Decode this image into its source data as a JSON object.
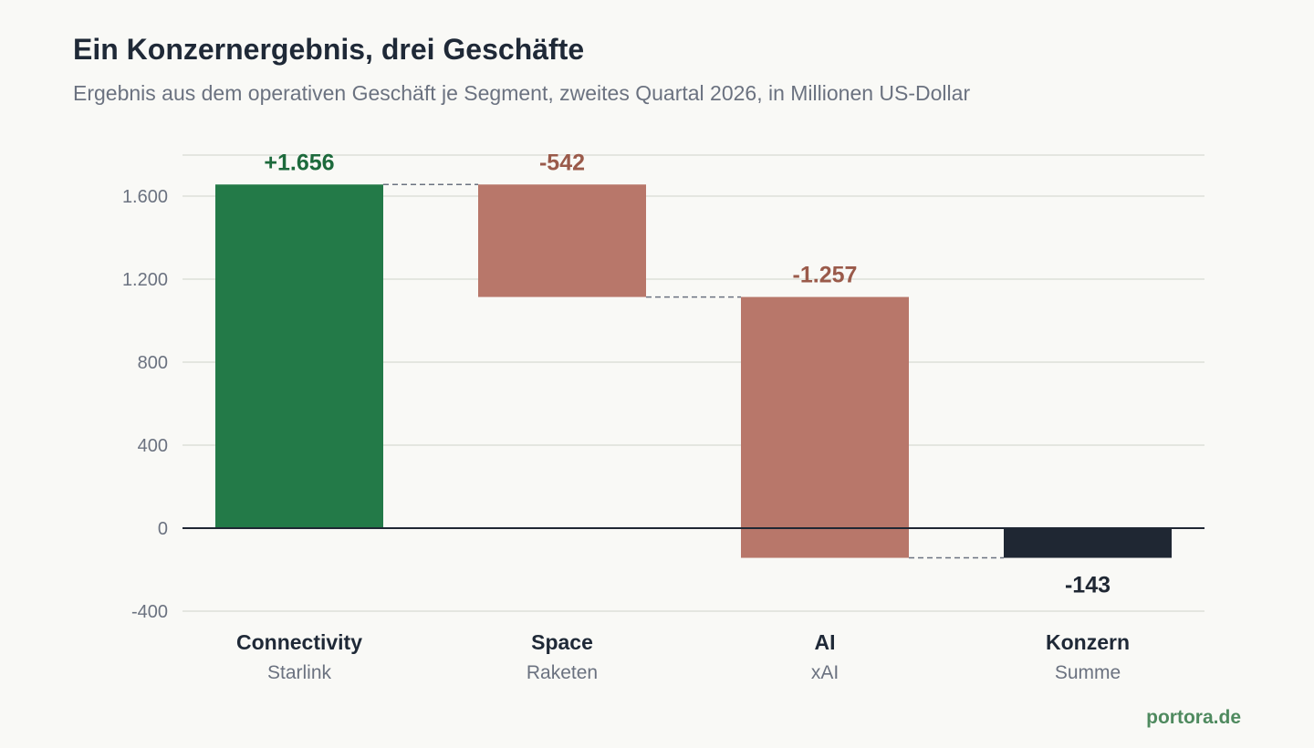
{
  "header": {
    "title": "Ein Konzernergebnis, drei Geschäfte",
    "subtitle": "Ergebnis aus dem operativen Geschäft je Segment, zweites Quartal 2026, in Millionen US-Dollar"
  },
  "footer": {
    "brand": "portora.de"
  },
  "colors": {
    "positive": "#237a48",
    "negative": "#b8776a",
    "total": "#1f2733",
    "positive_label": "#1d6a3c",
    "negative_label": "#9a5a4a",
    "total_label": "#1f2733"
  },
  "chart_data": {
    "type": "bar",
    "subtype": "waterfall",
    "title": "Ein Konzernergebnis, drei Geschäfte",
    "subtitle": "Ergebnis aus dem operativen Geschäft je Segment, zweites Quartal 2026, in Millionen US-Dollar",
    "categories": [
      "Connectivity",
      "Space",
      "AI",
      "Konzern"
    ],
    "sublabels": [
      "Starlink",
      "Raketen",
      "xAI",
      "Summe"
    ],
    "values": [
      1656,
      -542,
      -1257,
      -143
    ],
    "kinds": [
      "delta",
      "delta",
      "delta",
      "total"
    ],
    "value_labels": [
      "+1.656",
      "-542",
      "-1.257",
      "-143"
    ],
    "ylim": [
      -400,
      1750
    ],
    "yticks": [
      -400,
      0,
      400,
      800,
      1200,
      1600
    ],
    "ytick_labels": [
      "-400",
      "0",
      "400",
      "800",
      "1.200",
      "1.600"
    ],
    "grid": true,
    "connectors": true
  }
}
